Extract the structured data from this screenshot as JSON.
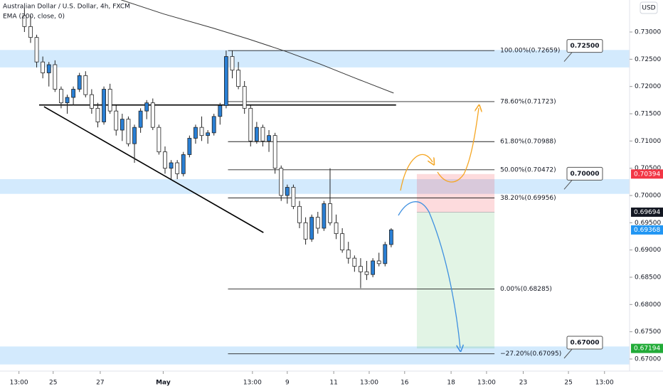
{
  "chart_data": {
    "type": "candlestick",
    "title": "Australian Dollar / U.S. Dollar, 4h, FXCM",
    "indicator": "EMA (200, close, 0)",
    "currency": "USD",
    "xlim": [
      -4,
      99
    ],
    "ylim": [
      0.66778,
      0.73587
    ],
    "yticks": [
      {
        "value": 0.73,
        "label": "0.73000"
      },
      {
        "value": 0.725,
        "label": "0.72500"
      },
      {
        "value": 0.72,
        "label": "0.72000"
      },
      {
        "value": 0.715,
        "label": "0.71500"
      },
      {
        "value": 0.71,
        "label": "0.71000"
      },
      {
        "value": 0.705,
        "label": "0.70500"
      },
      {
        "value": 0.7,
        "label": "0.70000"
      },
      {
        "value": 0.695,
        "label": "0.69500"
      },
      {
        "value": 0.69,
        "label": "0.69000"
      },
      {
        "value": 0.685,
        "label": "0.68500"
      },
      {
        "value": 0.68,
        "label": "0.68000"
      },
      {
        "value": 0.675,
        "label": "0.67500"
      },
      {
        "value": 0.67,
        "label": "0.67000"
      }
    ],
    "xticks": [
      {
        "value": -0.9,
        "label": "13:00"
      },
      {
        "value": 4.7,
        "label": "25"
      },
      {
        "value": 12.4,
        "label": "27"
      },
      {
        "value": 22.7,
        "label": "May"
      },
      {
        "value": 37.3,
        "label": "13:00"
      },
      {
        "value": 43,
        "label": "9"
      },
      {
        "value": 50.6,
        "label": "11"
      },
      {
        "value": 56.4,
        "label": "13:00"
      },
      {
        "value": 62.2,
        "label": "16"
      },
      {
        "value": 69.8,
        "label": "18"
      },
      {
        "value": 75.6,
        "label": "13:00"
      },
      {
        "value": 81.6,
        "label": "23"
      },
      {
        "value": 89,
        "label": "25"
      },
      {
        "value": 94.9,
        "label": "13:00"
      }
    ],
    "up_color": "#2a7fd4",
    "down_color": "#ffffff",
    "open": [
      0.733,
      0.731,
      0.729,
      0.7245,
      0.7225,
      0.724,
      0.7195,
      0.717,
      0.718,
      0.7195,
      0.722,
      0.7185,
      0.716,
      0.7135,
      0.7195,
      0.7155,
      0.712,
      0.714,
      0.7095,
      0.7125,
      0.7155,
      0.717,
      0.7125,
      0.708,
      0.705,
      0.706,
      0.704,
      0.7075,
      0.7105,
      0.7125,
      0.711,
      0.7115,
      0.7145,
      0.7165,
      0.7255,
      0.723,
      0.72,
      0.716,
      0.71,
      0.7125,
      0.71,
      0.711,
      0.705,
      0.7,
      0.7015,
      0.698,
      0.695,
      0.692,
      0.696,
      0.694,
      0.6985,
      0.695,
      0.693,
      0.69,
      0.6885,
      0.687,
      0.686,
      0.6855,
      0.688,
      0.6875,
      0.691
    ],
    "high": [
      0.7345,
      0.733,
      0.7295,
      0.7255,
      0.7245,
      0.7248,
      0.72,
      0.7185,
      0.72,
      0.7225,
      0.7228,
      0.7195,
      0.717,
      0.72,
      0.7205,
      0.7165,
      0.715,
      0.7145,
      0.713,
      0.716,
      0.7175,
      0.7178,
      0.713,
      0.709,
      0.7065,
      0.7065,
      0.708,
      0.711,
      0.713,
      0.7145,
      0.712,
      0.715,
      0.717,
      0.7266,
      0.7266,
      0.7245,
      0.721,
      0.7165,
      0.7135,
      0.713,
      0.712,
      0.7115,
      0.7055,
      0.702,
      0.702,
      0.699,
      0.696,
      0.6965,
      0.697,
      0.699,
      0.705,
      0.6965,
      0.694,
      0.6915,
      0.689,
      0.6885,
      0.688,
      0.6885,
      0.6895,
      0.6915,
      0.694
    ],
    "low": [
      0.73,
      0.728,
      0.7235,
      0.7215,
      0.72,
      0.719,
      0.716,
      0.715,
      0.7165,
      0.719,
      0.718,
      0.715,
      0.7125,
      0.713,
      0.715,
      0.711,
      0.71,
      0.709,
      0.706,
      0.7115,
      0.714,
      0.712,
      0.7075,
      0.704,
      0.703,
      0.703,
      0.7035,
      0.707,
      0.7095,
      0.71,
      0.7095,
      0.711,
      0.713,
      0.716,
      0.7215,
      0.7195,
      0.715,
      0.709,
      0.7095,
      0.709,
      0.708,
      0.704,
      0.699,
      0.6985,
      0.6975,
      0.694,
      0.691,
      0.6915,
      0.693,
      0.6935,
      0.6945,
      0.692,
      0.6895,
      0.6875,
      0.686,
      0.683,
      0.6845,
      0.685,
      0.687,
      0.687,
      0.6905
    ],
    "close": [
      0.731,
      0.729,
      0.7245,
      0.7225,
      0.724,
      0.7195,
      0.717,
      0.718,
      0.7195,
      0.722,
      0.7185,
      0.716,
      0.7135,
      0.7195,
      0.7155,
      0.712,
      0.714,
      0.7095,
      0.7125,
      0.7155,
      0.717,
      0.7125,
      0.708,
      0.705,
      0.706,
      0.704,
      0.7075,
      0.7105,
      0.7125,
      0.711,
      0.7115,
      0.7145,
      0.7165,
      0.7255,
      0.723,
      0.72,
      0.716,
      0.71,
      0.7125,
      0.71,
      0.711,
      0.705,
      0.7,
      0.7015,
      0.698,
      0.695,
      0.692,
      0.696,
      0.694,
      0.6985,
      0.695,
      0.693,
      0.69,
      0.6885,
      0.687,
      0.686,
      0.6855,
      0.688,
      0.6875,
      0.691,
      0.6937
    ],
    "ema": {
      "color": "#333333",
      "x": [
        15.8,
        22.8,
        30.9,
        36.7,
        42.6,
        48.4,
        54.2,
        60.4
      ],
      "values": [
        0.7359,
        0.7333,
        0.7307,
        0.7287,
        0.7265,
        0.7241,
        0.7215,
        0.7188
      ]
    },
    "fib": {
      "x_start": 33.3,
      "x_end": 76.9,
      "levels": [
        {
          "value": 0.72659,
          "label": "100.00%(0.72659)"
        },
        {
          "value": 0.71723,
          "label": "78.60%(0.71723)"
        },
        {
          "value": 0.70988,
          "label": "61.80%(0.70988)"
        },
        {
          "value": 0.70472,
          "label": "50.00%(0.70472)"
        },
        {
          "value": 0.69956,
          "label": "38.20%(0.69956)"
        },
        {
          "value": 0.68285,
          "label": "0.00%(0.68285)"
        },
        {
          "value": 0.67095,
          "label": "−27.20%(0.67095)"
        }
      ]
    },
    "zones": [
      {
        "label": "0.72500",
        "low": 0.7235,
        "high": 0.7267
      },
      {
        "label": "0.70000",
        "low": 0.7003,
        "high": 0.703
      },
      {
        "label": "0.67000",
        "low": 0.669,
        "high": 0.6723
      }
    ],
    "trendlines": [
      {
        "x": [
          2.4,
          60.8
        ],
        "values": [
          0.7166,
          0.7166
        ]
      },
      {
        "x": [
          3.2,
          39.1
        ],
        "values": [
          0.7163,
          0.6932
        ]
      }
    ],
    "position": {
      "x_start": 64.2,
      "x_end": 76.9,
      "stop": 0.70394,
      "entry": 0.69694,
      "target": 0.67194
    },
    "price_tags": [
      {
        "value": 0.70394,
        "label": "0.70394",
        "color": "#f23645"
      },
      {
        "value": 0.69694,
        "label": "0.69694",
        "color": "#131722"
      },
      {
        "value": 0.69368,
        "label": "0.69368",
        "color": "#2196f3"
      },
      {
        "value": 0.67194,
        "label": "0.67194",
        "color": "#22ab38"
      }
    ]
  }
}
